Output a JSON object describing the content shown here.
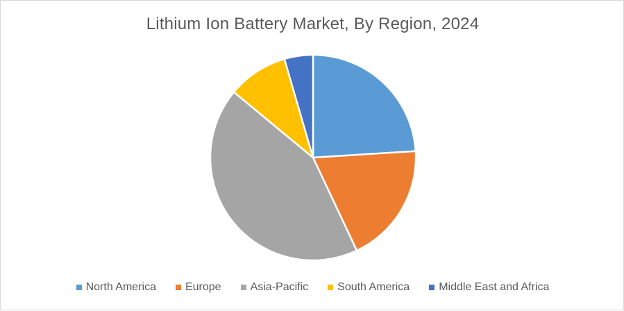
{
  "chart_data": {
    "type": "pie",
    "title": "Lithium Ion Battery Market, By Region, 2024",
    "legend_position": "bottom",
    "series": [
      {
        "name": "North America",
        "value": 24,
        "color": "#5b9bd5"
      },
      {
        "name": "Europe",
        "value": 19,
        "color": "#ed7d31"
      },
      {
        "name": "Asia-Pacific",
        "value": 43,
        "color": "#a5a5a5"
      },
      {
        "name": "South America",
        "value": 9.5,
        "color": "#ffc000"
      },
      {
        "name": "Middle East and Africa",
        "value": 4.5,
        "color": "#4472c4"
      }
    ]
  }
}
